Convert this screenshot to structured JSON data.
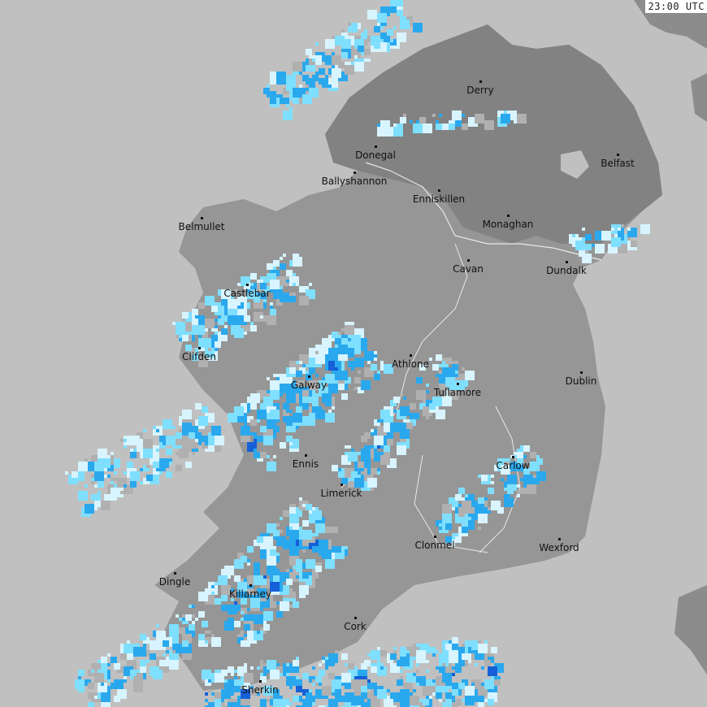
{
  "timestamp": "23:00 UTC",
  "colors": {
    "sea": "#c0c0c0",
    "land_republic": "#969696",
    "land_north": "#828282",
    "border": "#e8e8e8",
    "rain_light": "#d8f4ff",
    "rain_cyan": "#7fdfff",
    "rain_medium": "#2aa8ee",
    "rain_heavy": "#1560d8"
  },
  "cities": [
    {
      "name": "Derry"
    },
    {
      "name": "Donegal"
    },
    {
      "name": "Ballyshannon"
    },
    {
      "name": "Enniskillen"
    },
    {
      "name": "Belfast"
    },
    {
      "name": "Monaghan"
    },
    {
      "name": "Belmullet"
    },
    {
      "name": "Cavan"
    },
    {
      "name": "Dundalk"
    },
    {
      "name": "Castlebar"
    },
    {
      "name": "Clifden"
    },
    {
      "name": "Athlone"
    },
    {
      "name": "Dublin"
    },
    {
      "name": "Galway"
    },
    {
      "name": "Tullamore"
    },
    {
      "name": "Ennis"
    },
    {
      "name": "Carlow"
    },
    {
      "name": "Limerick"
    },
    {
      "name": "Clonmel"
    },
    {
      "name": "Wexford"
    },
    {
      "name": "Dingle"
    },
    {
      "name": "Killarney"
    },
    {
      "name": "Cork"
    },
    {
      "name": "Sherkin"
    }
  ]
}
